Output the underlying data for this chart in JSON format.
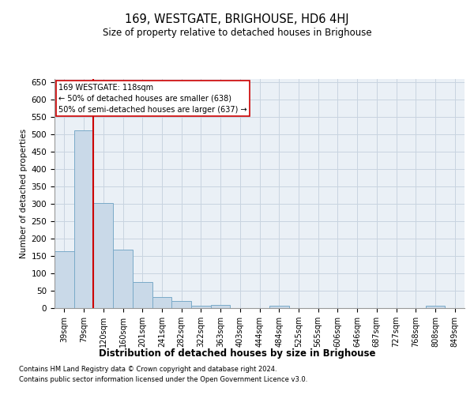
{
  "title": "169, WESTGATE, BRIGHOUSE, HD6 4HJ",
  "subtitle": "Size of property relative to detached houses in Brighouse",
  "xlabel": "Distribution of detached houses by size in Brighouse",
  "ylabel": "Number of detached properties",
  "categories": [
    "39sqm",
    "79sqm",
    "120sqm",
    "160sqm",
    "201sqm",
    "241sqm",
    "282sqm",
    "322sqm",
    "363sqm",
    "403sqm",
    "444sqm",
    "484sqm",
    "525sqm",
    "565sqm",
    "606sqm",
    "646sqm",
    "687sqm",
    "727sqm",
    "768sqm",
    "808sqm",
    "849sqm"
  ],
  "values": [
    165,
    513,
    303,
    168,
    76,
    31,
    20,
    7,
    8,
    0,
    0,
    7,
    0,
    0,
    0,
    0,
    0,
    0,
    0,
    7,
    0
  ],
  "bar_color": "#c9d9e8",
  "bar_edge_color": "#7aaac8",
  "grid_color": "#c8d4e0",
  "background_color": "#eaf0f6",
  "vline_x_idx": 2,
  "vline_color": "#cc0000",
  "annotation_text": "169 WESTGATE: 118sqm\n← 50% of detached houses are smaller (638)\n50% of semi-detached houses are larger (637) →",
  "annotation_box_color": "#ffffff",
  "annotation_border_color": "#cc0000",
  "ylim": [
    0,
    660
  ],
  "yticks": [
    0,
    50,
    100,
    150,
    200,
    250,
    300,
    350,
    400,
    450,
    500,
    550,
    600,
    650
  ],
  "footnote1": "Contains HM Land Registry data © Crown copyright and database right 2024.",
  "footnote2": "Contains public sector information licensed under the Open Government Licence v3.0."
}
